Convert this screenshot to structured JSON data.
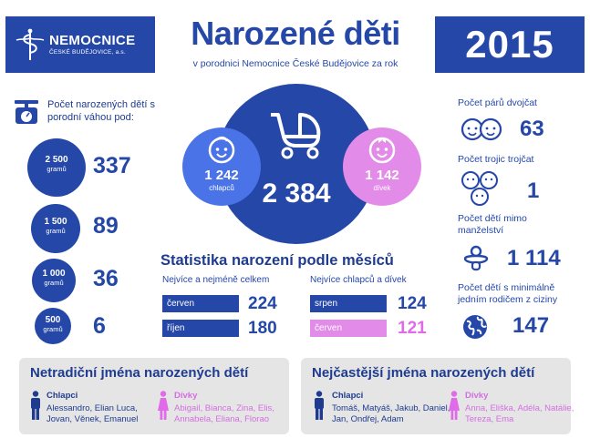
{
  "header": {
    "logo_name": "NEMOCNICE",
    "logo_sub": "ČESKÉ BUDĚJOVICE, a.s.",
    "title": "Narozené děti",
    "subtitle": "v porodnici Nemocnice České Budějovice za rok",
    "year": "2015"
  },
  "weights": {
    "title": "Počet narozených dětí s porodní váhou pod:",
    "items": [
      {
        "grams": "2 500",
        "unit": "gramů",
        "count": "337"
      },
      {
        "grams": "1 500",
        "unit": "gramů",
        "count": "89"
      },
      {
        "grams": "1 000",
        "unit": "gramů",
        "count": "36"
      },
      {
        "grams": "500",
        "unit": "gramů",
        "count": "6"
      }
    ]
  },
  "totals": {
    "total": "2 384",
    "boys": "1 242",
    "boys_label": "chlapců",
    "girls": "1 142",
    "girls_label": "dívek"
  },
  "months": {
    "title": "Statistika narození podle měsíců",
    "overall_header": "Nejvíce a nejméně celkem",
    "gender_header": "Nejvíce chlapců a dívek",
    "overall": [
      {
        "month": "červen",
        "value": "224"
      },
      {
        "month": "říjen",
        "value": "180"
      }
    ],
    "gender": [
      {
        "month": "srpen",
        "value": "124"
      },
      {
        "month": "červen",
        "value": "121"
      }
    ]
  },
  "right": {
    "twins_label": "Počet párů dvojčat",
    "twins": "63",
    "triplets_label": "Počet trojic trojčat",
    "triplets": "1",
    "outside_label": "Počet dětí mimo manželství",
    "outside": "1 114",
    "foreign_label": "Počet dětí s minimálně jedním rodičem z ciziny",
    "foreign": "147"
  },
  "unusual": {
    "title": "Netradiční jména narozených dětí",
    "boys_label": "Chlapci",
    "boys_names": "Alessandro, Elian Luca, Jovan, Věnek, Emanuel",
    "girls_label": "Dívky",
    "girls_names": "Abigail, Bianca, Zina, Elis, Annabela, Eliana, Florao"
  },
  "common": {
    "title": "Nejčastější jména narozených dětí",
    "boys_label": "Chlapci",
    "boys_names": "Tomáš, Matyáš, Jakub, Daniel, Jan, Ondřej, Adam",
    "girls_label": "Dívky",
    "girls_names": "Anna, Eliška, Adéla, Natálie, Tereza, Ema"
  },
  "colors": {
    "blue": "#2447a8",
    "light_blue": "#4a73e8",
    "pink": "#e38be8",
    "panel": "#e5e5e5"
  }
}
